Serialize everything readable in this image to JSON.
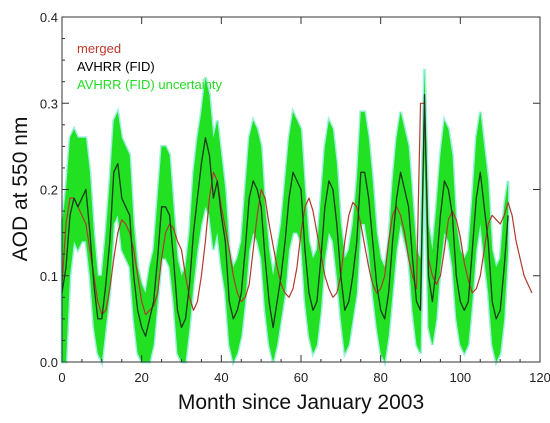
{
  "chart_data": {
    "type": "line",
    "xlabel": "Month since January 2003",
    "ylabel": "AOD at 550 nm",
    "xlim": [
      0,
      120
    ],
    "ylim": [
      0,
      0.4
    ],
    "x_ticks": [
      0,
      20,
      40,
      60,
      80,
      100,
      120
    ],
    "y_ticks": [
      0.0,
      0.1,
      0.2,
      0.3,
      0.4
    ],
    "x_tick_labels": [
      "0",
      "20",
      "40",
      "60",
      "80",
      "100",
      "120"
    ],
    "y_tick_labels": [
      "0.0",
      "0.1",
      "0.2",
      "0.3",
      "0.4"
    ],
    "grid": false,
    "legend_position": "top-left",
    "legend": [
      {
        "label": "merged",
        "color": "#c0392b"
      },
      {
        "label": "AVHRR (FID)",
        "color": "#000000"
      },
      {
        "label": "AVHRR (FID) uncertainty",
        "color": "#22dd22"
      }
    ],
    "colors": {
      "merged": "#b03a2e",
      "avhrr": "#1a3a1a",
      "band": "#22e022",
      "band_halo": "#9ff0df"
    },
    "series": [
      {
        "name": "merged",
        "x": [
          0,
          1,
          2,
          3,
          4,
          5,
          6,
          7,
          8,
          9,
          10,
          11,
          12,
          13,
          14,
          15,
          16,
          17,
          18,
          19,
          20,
          21,
          22,
          23,
          24,
          25,
          26,
          27,
          28,
          29,
          30,
          31,
          32,
          33,
          34,
          35,
          36,
          37,
          38,
          39,
          40,
          41,
          42,
          43,
          44,
          45,
          46,
          47,
          48,
          49,
          50,
          51,
          52,
          53,
          54,
          55,
          56,
          57,
          58,
          59,
          60,
          61,
          62,
          63,
          64,
          65,
          66,
          67,
          68,
          69,
          70,
          71,
          72,
          73,
          74,
          75,
          76,
          77,
          78,
          79,
          80,
          81,
          82,
          83,
          84,
          85,
          86,
          87,
          88,
          89,
          90,
          91,
          92,
          93,
          94,
          95,
          96,
          97,
          98,
          99,
          100,
          101,
          102,
          103,
          104,
          105,
          106,
          107,
          108,
          109,
          110,
          111,
          112,
          113,
          114,
          115,
          116,
          117,
          118
        ],
        "values": [
          0.09,
          0.16,
          0.19,
          0.19,
          0.18,
          0.17,
          0.16,
          0.13,
          0.1,
          0.07,
          0.055,
          0.06,
          0.085,
          0.12,
          0.15,
          0.165,
          0.16,
          0.15,
          0.13,
          0.1,
          0.07,
          0.055,
          0.06,
          0.065,
          0.08,
          0.12,
          0.15,
          0.16,
          0.155,
          0.14,
          0.13,
          0.1,
          0.075,
          0.06,
          0.07,
          0.1,
          0.14,
          0.19,
          0.22,
          0.21,
          0.18,
          0.155,
          0.13,
          0.1,
          0.08,
          0.07,
          0.075,
          0.09,
          0.13,
          0.17,
          0.2,
          0.19,
          0.16,
          0.135,
          0.11,
          0.09,
          0.08,
          0.075,
          0.085,
          0.11,
          0.15,
          0.18,
          0.19,
          0.175,
          0.15,
          0.125,
          0.1,
          0.085,
          0.075,
          0.08,
          0.1,
          0.14,
          0.17,
          0.185,
          0.18,
          0.16,
          0.135,
          0.11,
          0.09,
          0.08,
          0.085,
          0.1,
          0.14,
          0.17,
          0.18,
          0.17,
          0.15,
          0.12,
          0.1,
          0.085,
          0.3,
          0.3,
          0.12,
          0.1,
          0.09,
          0.1,
          0.13,
          0.165,
          0.175,
          0.165,
          0.145,
          0.115,
          0.095,
          0.08,
          0.085,
          0.1,
          0.13,
          0.16,
          0.17,
          0.165,
          0.16,
          0.17,
          0.185,
          0.17,
          0.14,
          0.12,
          0.1,
          0.09,
          0.08
        ]
      },
      {
        "name": "AVHRR (FID)",
        "x": [
          0,
          1,
          2,
          3,
          4,
          5,
          6,
          7,
          8,
          9,
          10,
          11,
          12,
          13,
          14,
          15,
          16,
          17,
          18,
          19,
          20,
          21,
          22,
          23,
          24,
          25,
          26,
          27,
          28,
          29,
          30,
          31,
          32,
          33,
          34,
          35,
          36,
          37,
          38,
          39,
          40,
          41,
          42,
          43,
          44,
          45,
          46,
          47,
          48,
          49,
          50,
          51,
          52,
          53,
          54,
          55,
          56,
          57,
          58,
          59,
          60,
          61,
          62,
          63,
          64,
          65,
          66,
          67,
          68,
          69,
          70,
          71,
          72,
          73,
          74,
          75,
          76,
          77,
          78,
          79,
          80,
          81,
          82,
          83,
          84,
          85,
          86,
          87,
          88,
          89,
          90,
          91,
          92,
          93,
          94,
          95,
          96,
          97,
          98,
          99,
          100,
          101,
          102,
          103,
          104,
          105,
          106,
          107,
          108,
          109,
          110,
          111,
          112
        ],
        "values": [
          0.08,
          0.11,
          0.17,
          0.19,
          0.18,
          0.19,
          0.2,
          0.15,
          0.09,
          0.05,
          0.05,
          0.09,
          0.14,
          0.22,
          0.23,
          0.19,
          0.18,
          0.17,
          0.1,
          0.06,
          0.04,
          0.03,
          0.05,
          0.07,
          0.12,
          0.18,
          0.18,
          0.17,
          0.12,
          0.06,
          0.04,
          0.05,
          0.09,
          0.15,
          0.19,
          0.23,
          0.26,
          0.24,
          0.19,
          0.21,
          0.17,
          0.14,
          0.07,
          0.05,
          0.06,
          0.08,
          0.13,
          0.19,
          0.21,
          0.2,
          0.18,
          0.12,
          0.07,
          0.04,
          0.07,
          0.1,
          0.14,
          0.19,
          0.22,
          0.21,
          0.2,
          0.13,
          0.08,
          0.06,
          0.07,
          0.12,
          0.18,
          0.21,
          0.2,
          0.16,
          0.1,
          0.06,
          0.07,
          0.1,
          0.14,
          0.22,
          0.22,
          0.19,
          0.14,
          0.09,
          0.06,
          0.05,
          0.08,
          0.14,
          0.19,
          0.22,
          0.2,
          0.18,
          0.12,
          0.07,
          0.06,
          0.31,
          0.1,
          0.07,
          0.11,
          0.17,
          0.21,
          0.2,
          0.17,
          0.1,
          0.07,
          0.06,
          0.07,
          0.13,
          0.19,
          0.22,
          0.18,
          0.14,
          0.07,
          0.05,
          0.06,
          0.11,
          0.17
        ]
      },
      {
        "name": "AVHRR (FID) uncertainty",
        "x": [
          0,
          1,
          2,
          3,
          4,
          5,
          6,
          7,
          8,
          9,
          10,
          11,
          12,
          13,
          14,
          15,
          16,
          17,
          18,
          19,
          20,
          21,
          22,
          23,
          24,
          25,
          26,
          27,
          28,
          29,
          30,
          31,
          32,
          33,
          34,
          35,
          36,
          37,
          38,
          39,
          40,
          41,
          42,
          43,
          44,
          45,
          46,
          47,
          48,
          49,
          50,
          51,
          52,
          53,
          54,
          55,
          56,
          57,
          58,
          59,
          60,
          61,
          62,
          63,
          64,
          65,
          66,
          67,
          68,
          69,
          70,
          71,
          72,
          73,
          74,
          75,
          76,
          77,
          78,
          79,
          80,
          81,
          82,
          83,
          84,
          85,
          86,
          87,
          88,
          89,
          90,
          91,
          92,
          93,
          94,
          95,
          96,
          97,
          98,
          99,
          100,
          101,
          102,
          103,
          104,
          105,
          106,
          107,
          108,
          109,
          110,
          111,
          112
        ],
        "lower": [
          0.0,
          0.0,
          0.1,
          0.14,
          0.13,
          0.14,
          0.14,
          0.1,
          0.04,
          0.01,
          0.0,
          0.04,
          0.08,
          0.16,
          0.17,
          0.13,
          0.12,
          0.11,
          0.05,
          0.01,
          0.0,
          0.0,
          0.0,
          0.02,
          0.07,
          0.12,
          0.12,
          0.11,
          0.07,
          0.01,
          0.0,
          0.0,
          0.04,
          0.09,
          0.13,
          0.16,
          0.18,
          0.17,
          0.13,
          0.15,
          0.11,
          0.08,
          0.02,
          0.0,
          0.01,
          0.03,
          0.07,
          0.13,
          0.15,
          0.14,
          0.12,
          0.06,
          0.02,
          0.0,
          0.02,
          0.05,
          0.08,
          0.13,
          0.15,
          0.15,
          0.14,
          0.07,
          0.03,
          0.01,
          0.02,
          0.06,
          0.12,
          0.15,
          0.14,
          0.1,
          0.05,
          0.01,
          0.02,
          0.05,
          0.08,
          0.16,
          0.16,
          0.13,
          0.08,
          0.04,
          0.01,
          0.0,
          0.03,
          0.08,
          0.13,
          0.16,
          0.14,
          0.12,
          0.06,
          0.02,
          0.01,
          0.24,
          0.04,
          0.02,
          0.05,
          0.11,
          0.15,
          0.14,
          0.11,
          0.05,
          0.02,
          0.01,
          0.02,
          0.07,
          0.13,
          0.16,
          0.12,
          0.08,
          0.02,
          0.0,
          0.01,
          0.05,
          0.13
        ],
        "upper": [
          0.16,
          0.2,
          0.26,
          0.27,
          0.26,
          0.26,
          0.26,
          0.22,
          0.15,
          0.1,
          0.1,
          0.15,
          0.21,
          0.28,
          0.29,
          0.26,
          0.25,
          0.24,
          0.16,
          0.11,
          0.09,
          0.08,
          0.11,
          0.13,
          0.19,
          0.25,
          0.25,
          0.24,
          0.18,
          0.12,
          0.1,
          0.11,
          0.15,
          0.22,
          0.26,
          0.29,
          0.33,
          0.31,
          0.26,
          0.28,
          0.24,
          0.2,
          0.13,
          0.11,
          0.12,
          0.14,
          0.2,
          0.26,
          0.28,
          0.27,
          0.25,
          0.18,
          0.13,
          0.1,
          0.13,
          0.16,
          0.21,
          0.26,
          0.29,
          0.28,
          0.27,
          0.2,
          0.14,
          0.12,
          0.13,
          0.19,
          0.25,
          0.28,
          0.27,
          0.23,
          0.16,
          0.12,
          0.13,
          0.16,
          0.21,
          0.29,
          0.29,
          0.26,
          0.21,
          0.15,
          0.12,
          0.11,
          0.14,
          0.21,
          0.26,
          0.29,
          0.27,
          0.25,
          0.19,
          0.13,
          0.12,
          0.34,
          0.16,
          0.13,
          0.18,
          0.24,
          0.28,
          0.27,
          0.24,
          0.16,
          0.13,
          0.12,
          0.13,
          0.19,
          0.26,
          0.29,
          0.25,
          0.21,
          0.13,
          0.11,
          0.12,
          0.18,
          0.21
        ]
      }
    ]
  }
}
